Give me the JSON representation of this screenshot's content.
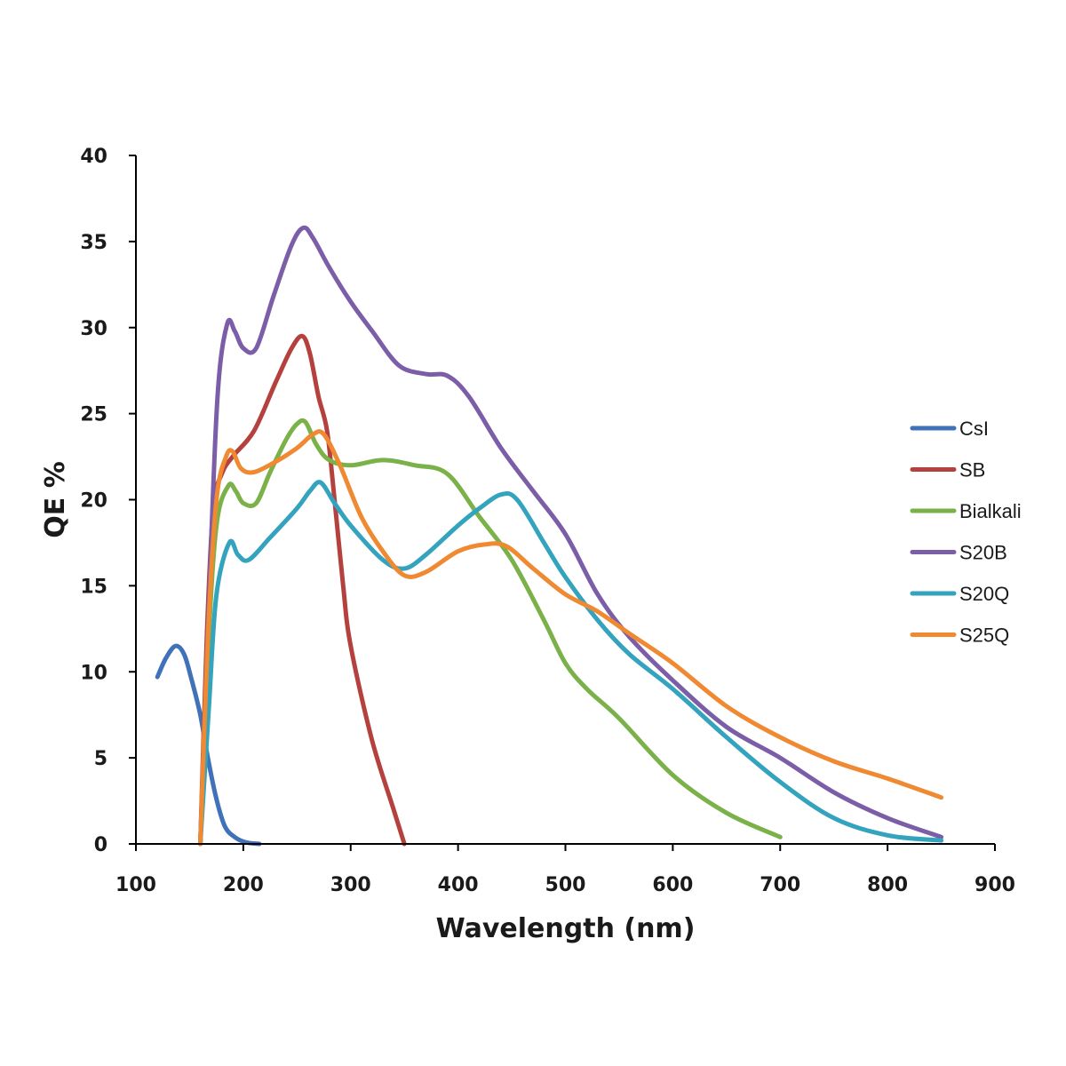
{
  "chart_data": {
    "type": "line",
    "title": "",
    "xlabel": "Wavelength (nm)",
    "ylabel": "QE %",
    "xlim": [
      100,
      900
    ],
    "ylim": [
      0,
      40
    ],
    "x_ticks": [
      100,
      200,
      300,
      400,
      500,
      600,
      700,
      800,
      900
    ],
    "y_ticks": [
      0,
      5,
      10,
      15,
      20,
      25,
      30,
      35,
      40
    ],
    "grid": false,
    "legend_position": "right",
    "series": [
      {
        "name": "CsI",
        "color": "#3f72b8",
        "points": [
          [
            120,
            9.7
          ],
          [
            128,
            10.8
          ],
          [
            137,
            11.5
          ],
          [
            145,
            11.0
          ],
          [
            152,
            9.5
          ],
          [
            160,
            7.5
          ],
          [
            167,
            5.0
          ],
          [
            175,
            2.6
          ],
          [
            183,
            1.0
          ],
          [
            192,
            0.4
          ],
          [
            202,
            0.1
          ],
          [
            215,
            0.0
          ]
        ]
      },
      {
        "name": "SB",
        "color": "#b5413e",
        "points": [
          [
            160,
            0.0
          ],
          [
            166,
            12.0
          ],
          [
            172,
            19.5
          ],
          [
            180,
            21.5
          ],
          [
            190,
            22.5
          ],
          [
            210,
            24.0
          ],
          [
            230,
            26.8
          ],
          [
            245,
            28.8
          ],
          [
            255,
            29.5
          ],
          [
            262,
            28.5
          ],
          [
            270,
            26.0
          ],
          [
            278,
            24.0
          ],
          [
            285,
            20.0
          ],
          [
            293,
            15.0
          ],
          [
            300,
            11.5
          ],
          [
            320,
            6.0
          ],
          [
            340,
            2.0
          ],
          [
            350,
            0.0
          ]
        ]
      },
      {
        "name": "Bialkali",
        "color": "#7ab148",
        "points": [
          [
            160,
            0.0
          ],
          [
            167,
            11.0
          ],
          [
            175,
            18.5
          ],
          [
            186,
            20.8
          ],
          [
            193,
            20.5
          ],
          [
            200,
            19.8
          ],
          [
            212,
            19.8
          ],
          [
            225,
            21.6
          ],
          [
            240,
            23.5
          ],
          [
            250,
            24.4
          ],
          [
            258,
            24.5
          ],
          [
            268,
            23.2
          ],
          [
            280,
            22.3
          ],
          [
            300,
            22.0
          ],
          [
            330,
            22.3
          ],
          [
            360,
            22.0
          ],
          [
            390,
            21.5
          ],
          [
            420,
            19.0
          ],
          [
            450,
            16.5
          ],
          [
            480,
            13.0
          ],
          [
            500,
            10.5
          ],
          [
            520,
            9.0
          ],
          [
            550,
            7.3
          ],
          [
            600,
            4.0
          ],
          [
            650,
            1.8
          ],
          [
            700,
            0.4
          ]
        ]
      },
      {
        "name": "S20B",
        "color": "#7b5ea7",
        "points": [
          [
            160,
            0.0
          ],
          [
            168,
            14.0
          ],
          [
            176,
            26.0
          ],
          [
            185,
            30.2
          ],
          [
            192,
            29.8
          ],
          [
            200,
            28.8
          ],
          [
            212,
            28.8
          ],
          [
            228,
            31.8
          ],
          [
            245,
            34.8
          ],
          [
            256,
            35.8
          ],
          [
            265,
            35.2
          ],
          [
            280,
            33.5
          ],
          [
            300,
            31.5
          ],
          [
            320,
            29.8
          ],
          [
            345,
            27.8
          ],
          [
            370,
            27.3
          ],
          [
            390,
            27.2
          ],
          [
            410,
            26.0
          ],
          [
            440,
            23.0
          ],
          [
            470,
            20.5
          ],
          [
            500,
            18.0
          ],
          [
            530,
            14.5
          ],
          [
            560,
            12.0
          ],
          [
            600,
            9.5
          ],
          [
            650,
            6.8
          ],
          [
            700,
            5.0
          ],
          [
            750,
            3.0
          ],
          [
            800,
            1.5
          ],
          [
            850,
            0.4
          ]
        ]
      },
      {
        "name": "S20Q",
        "color": "#33a3be",
        "points": [
          [
            160,
            0.0
          ],
          [
            168,
            8.0
          ],
          [
            175,
            14.5
          ],
          [
            187,
            17.5
          ],
          [
            195,
            16.8
          ],
          [
            205,
            16.5
          ],
          [
            225,
            17.8
          ],
          [
            250,
            19.5
          ],
          [
            262,
            20.5
          ],
          [
            272,
            21.0
          ],
          [
            285,
            19.8
          ],
          [
            300,
            18.5
          ],
          [
            330,
            16.5
          ],
          [
            350,
            16.0
          ],
          [
            370,
            16.8
          ],
          [
            400,
            18.5
          ],
          [
            420,
            19.5
          ],
          [
            440,
            20.3
          ],
          [
            455,
            20.0
          ],
          [
            480,
            17.5
          ],
          [
            500,
            15.5
          ],
          [
            530,
            13.0
          ],
          [
            560,
            11.0
          ],
          [
            600,
            9.0
          ],
          [
            650,
            6.2
          ],
          [
            700,
            3.6
          ],
          [
            750,
            1.5
          ],
          [
            800,
            0.5
          ],
          [
            850,
            0.2
          ]
        ]
      },
      {
        "name": "S25Q",
        "color": "#ef8a33",
        "points": [
          [
            160,
            0.0
          ],
          [
            167,
            12.0
          ],
          [
            175,
            20.0
          ],
          [
            184,
            22.5
          ],
          [
            190,
            22.8
          ],
          [
            198,
            21.8
          ],
          [
            210,
            21.6
          ],
          [
            230,
            22.2
          ],
          [
            250,
            23.0
          ],
          [
            265,
            23.8
          ],
          [
            275,
            23.8
          ],
          [
            290,
            22.0
          ],
          [
            310,
            19.0
          ],
          [
            330,
            17.0
          ],
          [
            350,
            15.6
          ],
          [
            370,
            15.8
          ],
          [
            400,
            17.0
          ],
          [
            425,
            17.4
          ],
          [
            445,
            17.3
          ],
          [
            470,
            16.0
          ],
          [
            500,
            14.5
          ],
          [
            530,
            13.5
          ],
          [
            560,
            12.2
          ],
          [
            600,
            10.5
          ],
          [
            650,
            8.0
          ],
          [
            700,
            6.2
          ],
          [
            750,
            4.8
          ],
          [
            800,
            3.8
          ],
          [
            850,
            2.7
          ]
        ]
      }
    ]
  }
}
